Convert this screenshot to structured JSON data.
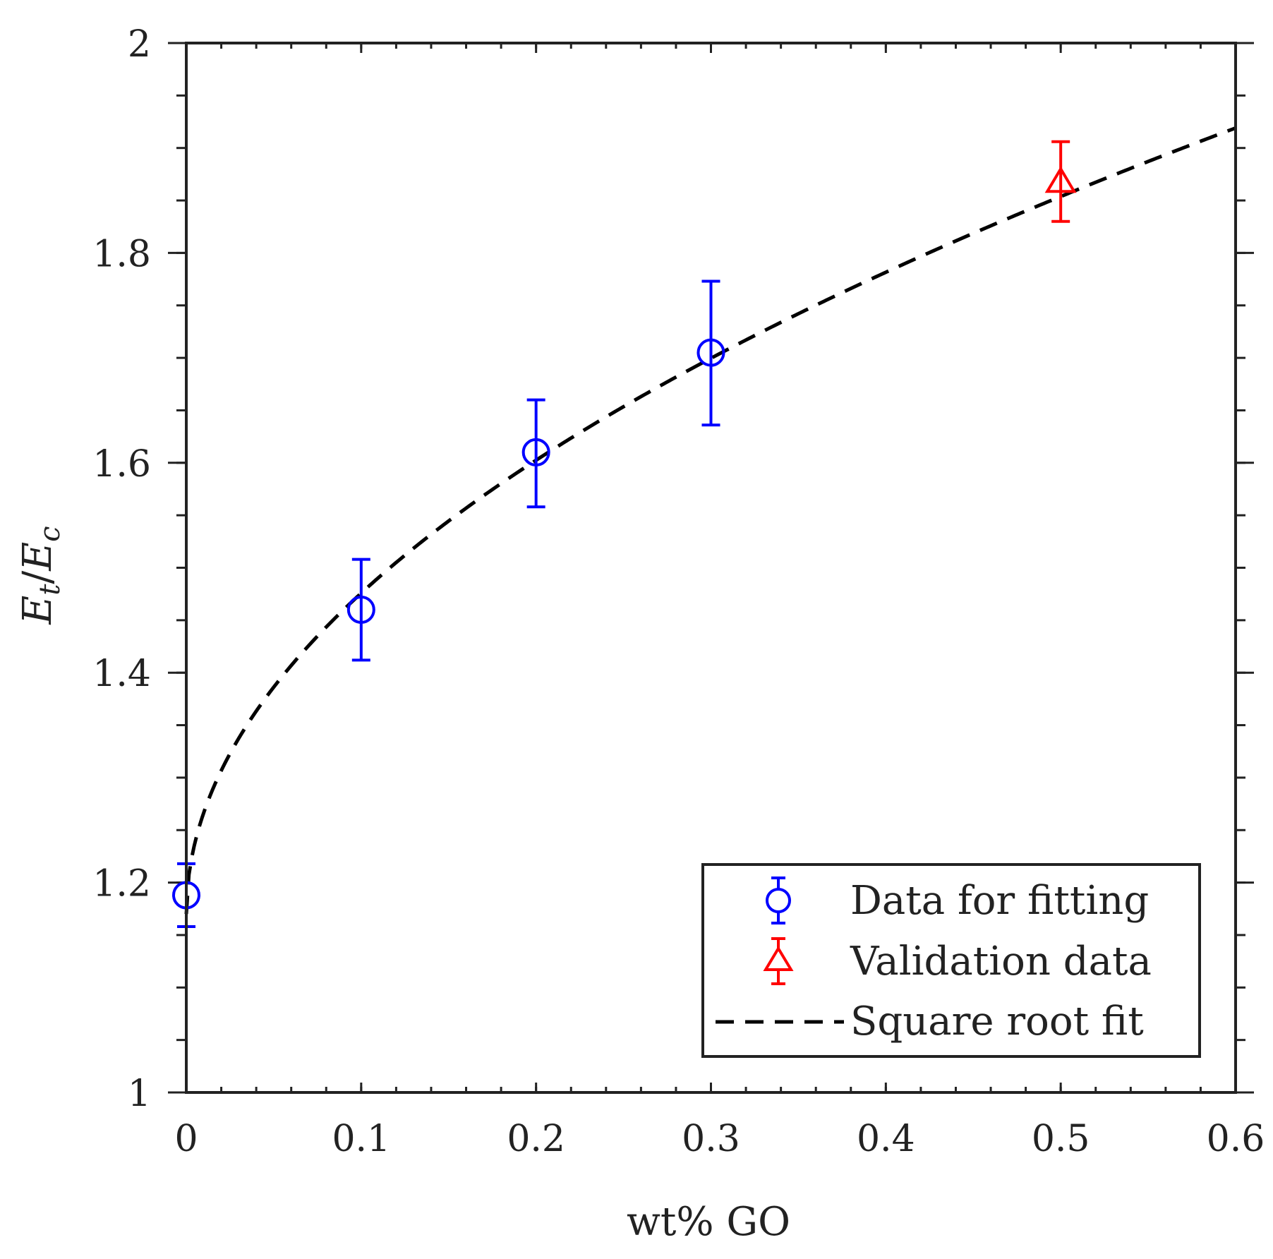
{
  "chart_data": {
    "type": "scatter",
    "xlabel": "wt% GO",
    "ylabel_parts": {
      "base1": "E",
      "sub1": "t",
      "slash": "/",
      "base2": "E",
      "sub2": "c"
    },
    "xlim": [
      0,
      0.6
    ],
    "ylim": [
      1,
      2
    ],
    "x_ticks": [
      0,
      0.1,
      0.2,
      0.3,
      0.4,
      0.5,
      0.6
    ],
    "x_tick_labels": [
      "0",
      "0.1",
      "0.2",
      "0.3",
      "0.4",
      "0.5",
      "0.6"
    ],
    "x_minor_step": 0.02,
    "y_ticks": [
      1,
      1.2,
      1.4,
      1.6,
      1.8,
      2
    ],
    "y_tick_labels": [
      "1",
      "1.2",
      "1.4",
      "1.6",
      "1.8",
      "2"
    ],
    "y_minor_step": 0.05,
    "grid": false,
    "legend_position": "bottom-right",
    "series": [
      {
        "name": "Data for fitting",
        "kind": "errorbar",
        "marker": "circle",
        "color": "#0000ff",
        "points": [
          {
            "x": 0.0,
            "y": 1.188,
            "low": 1.158,
            "high": 1.218
          },
          {
            "x": 0.1,
            "y": 1.46,
            "low": 1.412,
            "high": 1.508
          },
          {
            "x": 0.2,
            "y": 1.61,
            "low": 1.558,
            "high": 1.66
          },
          {
            "x": 0.3,
            "y": 1.705,
            "low": 1.636,
            "high": 1.773
          }
        ]
      },
      {
        "name": "Validation data",
        "kind": "errorbar",
        "marker": "triangle",
        "color": "#ff0000",
        "points": [
          {
            "x": 0.5,
            "y": 1.868,
            "low": 1.83,
            "high": 1.906
          }
        ]
      },
      {
        "name": "Square root fit",
        "kind": "line",
        "style": "dashed",
        "color": "#000000",
        "equation": "y = 1.17 + 0.967*sqrt(x)",
        "params": {
          "a": 1.17,
          "b": 0.967
        },
        "x_range": [
          0,
          0.6
        ]
      }
    ]
  }
}
